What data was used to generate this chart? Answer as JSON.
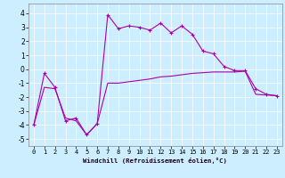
{
  "background_color": "#cceeff",
  "line_color": "#aa00aa",
  "xlim": [
    -0.5,
    23.5
  ],
  "ylim": [
    -5.5,
    4.7
  ],
  "yticks": [
    -5,
    -4,
    -3,
    -2,
    -1,
    0,
    1,
    2,
    3,
    4
  ],
  "xticks": [
    0,
    1,
    2,
    3,
    4,
    5,
    6,
    7,
    8,
    9,
    10,
    11,
    12,
    13,
    14,
    15,
    16,
    17,
    18,
    19,
    20,
    21,
    22,
    23
  ],
  "line1_x": [
    0,
    1,
    2,
    3,
    4,
    5,
    6,
    7,
    8,
    9,
    10,
    11,
    12,
    13,
    14,
    15,
    16,
    17,
    18,
    19,
    20,
    21,
    22,
    23
  ],
  "line1_y": [
    -4.0,
    -0.3,
    -1.3,
    -3.7,
    -3.5,
    -4.7,
    -3.9,
    3.9,
    2.9,
    3.1,
    3.0,
    2.8,
    3.3,
    2.6,
    3.1,
    2.5,
    1.3,
    1.1,
    0.2,
    -0.1,
    -0.1,
    -1.4,
    -1.8,
    -1.9
  ],
  "line2_x": [
    0,
    1,
    2,
    3,
    4,
    5,
    6,
    7,
    8,
    9,
    10,
    11,
    12,
    13,
    14,
    15,
    16,
    17,
    18,
    19,
    20,
    21,
    22,
    23
  ],
  "line2_y": [
    -4.0,
    -1.3,
    -1.4,
    -3.5,
    -3.7,
    -4.7,
    -3.9,
    -1.0,
    -1.0,
    -0.9,
    -0.8,
    -0.7,
    -0.55,
    -0.5,
    -0.4,
    -0.3,
    -0.25,
    -0.2,
    -0.2,
    -0.2,
    -0.15,
    -1.8,
    -1.85,
    -1.9
  ],
  "xlabel": "Windchill (Refroidissement éolien,°C)",
  "xlabel_color": "#220022",
  "grid_color": "#ffffff",
  "tick_fontsize": 5.0,
  "xlabel_fontsize": 5.2
}
